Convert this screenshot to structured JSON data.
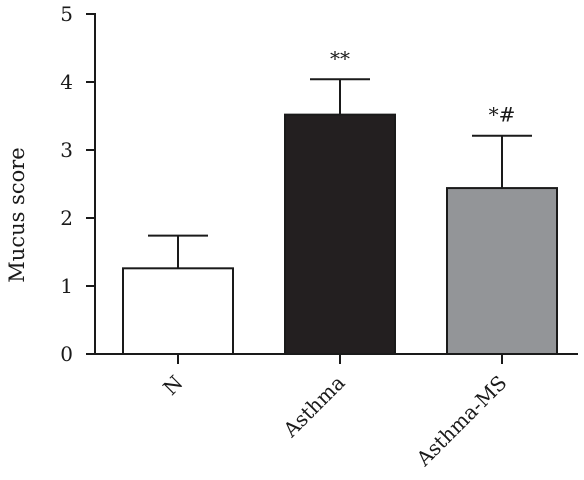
{
  "chart_data": {
    "type": "bar",
    "title": "",
    "xlabel": "",
    "ylabel": "Mucus score",
    "ylim": [
      0,
      5
    ],
    "yticks": [
      "0",
      "1",
      "2",
      "3",
      "4",
      "5"
    ],
    "categories": [
      "N",
      "Asthma",
      "Asthma-MS"
    ],
    "values": [
      1.26,
      3.52,
      2.44
    ],
    "errors": [
      0.48,
      0.52,
      0.77
    ],
    "bar_colors": [
      "#ffffff",
      "#231f20",
      "#939598"
    ],
    "annotations": [
      "",
      "**",
      "*#"
    ],
    "grid": false,
    "legend": "none"
  }
}
